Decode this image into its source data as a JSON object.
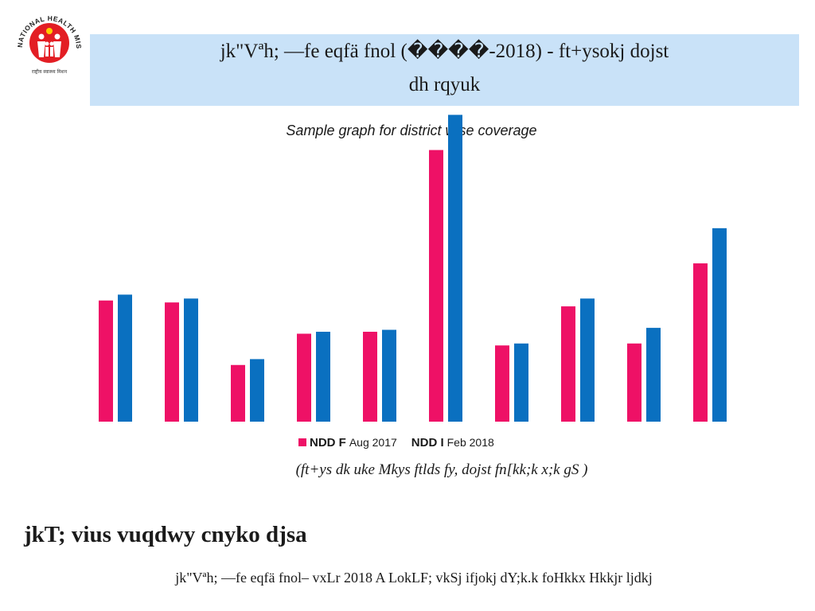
{
  "logo": {
    "ring_text": "NATIONAL HEALTH MISSION",
    "bottom_text": "राष्ट्रीय स्वास्थ्य मिशन",
    "icon": "family-icon",
    "ring_color": "#e31e24"
  },
  "header": {
    "title_line1": "jk\"Vªh; —fe eqfä fnol (����-2018) - ft+ysokj dojst",
    "title_line2": "dh rqyuk"
  },
  "chart_data": {
    "type": "bar",
    "title": "Sample graph for district wise coverage",
    "categories": [
      "",
      "",
      "",
      "",
      "",
      "",
      "",
      "",
      "",
      ""
    ],
    "series": [
      {
        "name": "NDD F Aug 2017",
        "color": "#ee1166",
        "values": [
          31,
          30.5,
          14.5,
          22.5,
          23,
          69.5,
          19.5,
          29.5,
          20,
          40.5
        ]
      },
      {
        "name": "NDD I Feb 2018",
        "color": "#0a70c0",
        "values": [
          32.5,
          31.5,
          16,
          23,
          23.5,
          78.5,
          20,
          31.5,
          24,
          49.5
        ]
      }
    ],
    "ylim": [
      0,
      80
    ],
    "legend_position": "bottom",
    "grid": false
  },
  "legend": {
    "item1_strong": "NDD F",
    "item1_rest": "Aug 2017",
    "item2_strong": "NDD I",
    "item2_rest": "Feb 2018"
  },
  "note": "(ft+ys dk uke Mkys ftlds fy, dojst fn[kk;k x;k gS )",
  "state_heading": "jkT; vius vuqdwy cnyko djsa",
  "footer": "jk\"Vªh; —fe eqfä fnol– vxLr 2018 A LokLF; vkSj ifjokj dY;k.k foHkkx Hkkjr ljdkj"
}
